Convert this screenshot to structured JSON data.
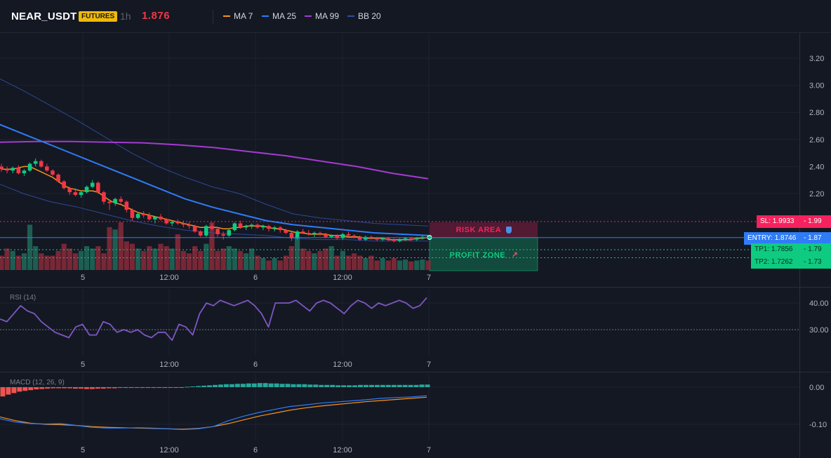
{
  "header": {
    "symbol": "NEAR_USDT",
    "badge": "FUTURES",
    "timeframe": "1h",
    "last_price": "1.876",
    "legend": [
      {
        "label": "MA 7",
        "color": "#f7931a"
      },
      {
        "label": "MA 25",
        "color": "#2f7cf6"
      },
      {
        "label": "MA 99",
        "color": "#a43bd1"
      },
      {
        "label": "BB 20",
        "color": "#2f4ea0"
      }
    ]
  },
  "colors": {
    "background": "#141823",
    "up": "#26a69a",
    "up_bright": "#0ecb81",
    "down": "#f23645",
    "entry": "#2f7cf6",
    "sl": "#f6225d",
    "tp": "#0ecb81"
  },
  "annotations": {
    "risk_label": "RISK AREA",
    "risk_icon": "shield-icon",
    "profit_label": "PROFIT ZONE",
    "profit_icon": "rocket-icon",
    "sl": {
      "label": "SL: 1.9933",
      "value": "1.99"
    },
    "entry": {
      "label": "ENTRY: 1.8746",
      "value": "1.87"
    },
    "tp1": {
      "label": "TP1: 1.7856",
      "value": "1.79"
    },
    "tp2": {
      "label": "TP2: 1.7262",
      "value": "1.73"
    }
  },
  "x_axis_labels": [
    "5",
    "12:00",
    "6",
    "12:00",
    "7"
  ],
  "chart_data": [
    {
      "type": "candlestick",
      "panel": "price",
      "y_ticks": [
        "3.20",
        "3.00",
        "2.80",
        "2.60",
        "2.40",
        "2.20"
      ],
      "ylim": [
        1.6,
        3.3
      ],
      "grid": true,
      "candles_ohlc": [
        [
          2.4,
          2.42,
          2.36,
          2.38
        ],
        [
          2.38,
          2.4,
          2.35,
          2.37
        ],
        [
          2.37,
          2.4,
          2.35,
          2.39
        ],
        [
          2.39,
          2.41,
          2.34,
          2.35
        ],
        [
          2.35,
          2.38,
          2.33,
          2.37
        ],
        [
          2.37,
          2.43,
          2.36,
          2.42
        ],
        [
          2.42,
          2.46,
          2.4,
          2.44
        ],
        [
          2.44,
          2.45,
          2.39,
          2.4
        ],
        [
          2.4,
          2.42,
          2.36,
          2.37
        ],
        [
          2.37,
          2.38,
          2.33,
          2.34
        ],
        [
          2.34,
          2.35,
          2.28,
          2.29
        ],
        [
          2.29,
          2.3,
          2.23,
          2.24
        ],
        [
          2.24,
          2.25,
          2.19,
          2.21
        ],
        [
          2.21,
          2.24,
          2.18,
          2.19
        ],
        [
          2.19,
          2.22,
          2.17,
          2.21
        ],
        [
          2.21,
          2.26,
          2.2,
          2.25
        ],
        [
          2.25,
          2.3,
          2.24,
          2.28
        ],
        [
          2.28,
          2.29,
          2.2,
          2.21
        ],
        [
          2.21,
          2.22,
          2.12,
          2.14
        ],
        [
          2.14,
          2.16,
          2.08,
          2.13
        ],
        [
          2.13,
          2.17,
          2.11,
          2.16
        ],
        [
          2.16,
          2.18,
          2.13,
          2.14
        ],
        [
          2.14,
          2.15,
          2.06,
          2.08
        ],
        [
          2.08,
          2.09,
          2.0,
          2.02
        ],
        [
          2.02,
          2.06,
          2.01,
          2.05
        ],
        [
          2.05,
          2.07,
          2.02,
          2.04
        ],
        [
          2.04,
          2.06,
          2.0,
          2.01
        ],
        [
          2.01,
          2.03,
          1.98,
          2.03
        ],
        [
          2.03,
          2.05,
          2.0,
          2.01
        ],
        [
          2.01,
          2.02,
          1.97,
          1.98
        ],
        [
          1.98,
          2.0,
          1.96,
          1.99
        ],
        [
          1.99,
          2.01,
          1.97,
          1.98
        ],
        [
          1.98,
          2.0,
          1.95,
          1.97
        ],
        [
          1.97,
          1.99,
          1.94,
          1.96
        ],
        [
          1.96,
          1.97,
          1.91,
          1.92
        ],
        [
          1.92,
          1.93,
          1.88,
          1.89
        ],
        [
          1.89,
          1.97,
          1.88,
          1.96
        ],
        [
          1.96,
          1.98,
          1.93,
          1.94
        ],
        [
          1.94,
          1.95,
          1.88,
          1.9
        ],
        [
          1.9,
          1.92,
          1.86,
          1.89
        ],
        [
          1.89,
          1.94,
          1.88,
          1.93
        ],
        [
          1.93,
          1.99,
          1.92,
          1.98
        ],
        [
          1.98,
          2.0,
          1.94,
          1.95
        ],
        [
          1.95,
          1.97,
          1.93,
          1.96
        ],
        [
          1.96,
          1.98,
          1.94,
          1.97
        ],
        [
          1.97,
          1.98,
          1.94,
          1.95
        ],
        [
          1.95,
          1.97,
          1.93,
          1.96
        ],
        [
          1.96,
          1.97,
          1.92,
          1.94
        ],
        [
          1.94,
          1.96,
          1.92,
          1.95
        ],
        [
          1.95,
          1.96,
          1.91,
          1.93
        ],
        [
          1.93,
          1.94,
          1.9,
          1.91
        ],
        [
          1.91,
          1.92,
          1.85,
          1.87
        ],
        [
          1.87,
          1.93,
          1.86,
          1.92
        ],
        [
          1.92,
          1.94,
          1.9,
          1.91
        ],
        [
          1.91,
          1.93,
          1.89,
          1.9
        ],
        [
          1.9,
          1.92,
          1.88,
          1.91
        ],
        [
          1.91,
          1.92,
          1.89,
          1.9
        ],
        [
          1.9,
          1.91,
          1.87,
          1.88
        ],
        [
          1.88,
          1.9,
          1.87,
          1.89
        ],
        [
          1.89,
          1.9,
          1.86,
          1.87
        ],
        [
          1.87,
          1.91,
          1.86,
          1.9
        ],
        [
          1.9,
          1.92,
          1.88,
          1.89
        ],
        [
          1.89,
          1.9,
          1.87,
          1.88
        ],
        [
          1.88,
          1.89,
          1.85,
          1.86
        ],
        [
          1.86,
          1.89,
          1.85,
          1.88
        ],
        [
          1.88,
          1.89,
          1.86,
          1.87
        ],
        [
          1.87,
          1.88,
          1.85,
          1.86
        ],
        [
          1.86,
          1.88,
          1.85,
          1.87
        ],
        [
          1.87,
          1.88,
          1.85,
          1.86
        ],
        [
          1.86,
          1.87,
          1.84,
          1.85
        ],
        [
          1.85,
          1.87,
          1.84,
          1.86
        ],
        [
          1.86,
          1.88,
          1.85,
          1.87
        ],
        [
          1.87,
          1.88,
          1.85,
          1.86
        ],
        [
          1.86,
          1.88,
          1.85,
          1.87
        ],
        [
          1.87,
          1.89,
          1.86,
          1.88
        ],
        [
          1.88,
          1.89,
          1.86,
          1.876
        ]
      ],
      "volume_levels": [
        0.3,
        0.45,
        0.4,
        0.3,
        0.35,
        0.95,
        0.5,
        0.35,
        0.3,
        0.3,
        0.4,
        0.55,
        0.45,
        0.35,
        0.4,
        0.5,
        0.45,
        0.5,
        0.35,
        0.9,
        0.85,
        1.0,
        0.6,
        0.55,
        0.45,
        0.4,
        0.5,
        0.45,
        0.55,
        0.5,
        0.45,
        0.75,
        0.4,
        0.35,
        0.5,
        0.4,
        0.55,
        1.0,
        0.4,
        0.45,
        0.5,
        0.45,
        0.4,
        0.35,
        0.45,
        0.3,
        0.25,
        0.2,
        0.25,
        0.2,
        0.3,
        0.5,
        0.7,
        0.45,
        0.4,
        0.35,
        0.4,
        0.45,
        0.5,
        0.3,
        0.4,
        0.3,
        0.35,
        0.3,
        0.25,
        0.3,
        0.2,
        0.25,
        0.2,
        0.25,
        0.2,
        0.22,
        0.18,
        0.2,
        0.22,
        0.2
      ],
      "series": [
        {
          "name": "MA 7",
          "values": [
            2.38,
            2.38,
            2.38,
            2.39,
            2.4,
            2.4,
            2.38,
            2.36,
            2.34,
            2.32,
            2.29,
            2.26,
            2.24,
            2.23,
            2.22,
            2.22,
            2.22,
            2.21,
            2.18,
            2.15,
            2.13,
            2.12,
            2.1,
            2.08,
            2.06,
            2.05,
            2.04,
            2.03,
            2.02,
            2.01,
            2.0,
            1.99,
            1.98,
            1.97,
            1.96,
            1.95,
            1.95,
            1.95,
            1.95,
            1.94,
            1.94,
            1.95,
            1.95,
            1.96,
            1.96,
            1.96,
            1.96,
            1.95,
            1.94,
            1.94,
            1.93,
            1.92,
            1.91,
            1.91,
            1.9,
            1.9,
            1.9,
            1.9,
            1.89,
            1.89,
            1.89,
            1.88,
            1.88,
            1.88,
            1.87,
            1.87,
            1.87,
            1.87,
            1.86,
            1.86,
            1.86,
            1.86,
            1.86,
            1.87,
            1.87,
            1.876
          ]
        },
        {
          "name": "MA 25",
          "x_range": [
            0,
            75
          ],
          "values": [
            2.72,
            2.64,
            2.56,
            2.48,
            2.4,
            2.32,
            2.24,
            2.16,
            2.1,
            2.05,
            2.0,
            1.97,
            1.95,
            1.93,
            1.91,
            1.9,
            1.89
          ]
        },
        {
          "name": "MA 99",
          "x_range": [
            0,
            75
          ],
          "values": [
            2.58,
            2.585,
            2.585,
            2.58,
            2.575,
            2.56,
            2.54,
            2.51,
            2.48,
            2.44,
            2.4,
            2.35,
            2.31
          ]
        },
        {
          "name": "BB 20 upper",
          "x_range": [
            0,
            75
          ],
          "values": [
            3.06,
            2.96,
            2.85,
            2.74,
            2.62,
            2.5,
            2.4,
            2.32,
            2.25,
            2.2,
            2.12,
            2.05,
            2.02,
            2.0,
            1.98,
            1.97,
            1.96
          ]
        },
        {
          "name": "BB 20 lower",
          "x_range": [
            0,
            75
          ],
          "values": [
            2.28,
            2.2,
            2.14,
            2.1,
            2.05,
            2.0,
            1.96,
            1.93,
            1.91,
            1.9,
            1.89,
            1.87,
            1.86,
            1.86,
            1.85,
            1.85,
            1.85
          ]
        }
      ],
      "levels": {
        "sl": 1.9933,
        "entry": 1.8746,
        "tp1": 1.7856,
        "tp2": 1.7262
      }
    },
    {
      "type": "line",
      "panel": "rsi",
      "title": "RSI (14)",
      "y_ticks": [
        "40.00",
        "30.00"
      ],
      "ylim": [
        20,
        45
      ],
      "level": 30,
      "values": [
        34,
        33,
        36,
        39,
        37,
        36,
        33,
        31,
        29,
        28,
        27,
        31,
        32,
        28,
        28,
        33,
        32,
        29,
        30,
        29,
        30,
        28,
        27,
        29,
        29,
        26,
        32,
        31,
        28,
        36,
        40,
        39,
        41,
        40,
        39,
        40,
        41,
        39,
        36,
        31,
        40,
        40,
        40,
        41,
        39,
        37,
        40,
        41,
        40,
        38,
        36,
        39,
        41,
        40,
        38,
        40,
        39,
        40,
        41,
        40,
        38,
        39,
        42
      ]
    },
    {
      "type": "bar",
      "panel": "macd",
      "title": "MACD (12, 26, 9)",
      "y_ticks": [
        "0.00",
        "-0.10"
      ],
      "ylim": [
        -0.14,
        0.03
      ],
      "histogram": [
        -0.025,
        -0.02,
        -0.016,
        -0.012,
        -0.01,
        -0.008,
        -0.006,
        -0.005,
        -0.004,
        -0.003,
        -0.003,
        -0.003,
        -0.003,
        -0.004,
        -0.004,
        -0.005,
        -0.005,
        -0.004,
        -0.004,
        -0.003,
        -0.003,
        -0.002,
        -0.002,
        -0.002,
        -0.002,
        -0.002,
        -0.002,
        -0.002,
        -0.002,
        -0.002,
        -0.001,
        -0.001,
        -0.001,
        0.001,
        0.002,
        0.003,
        0.004,
        0.005,
        0.006,
        0.007,
        0.008,
        0.008,
        0.009,
        0.009,
        0.01,
        0.01,
        0.011,
        0.011,
        0.01,
        0.01,
        0.009,
        0.009,
        0.008,
        0.008,
        0.008,
        0.007,
        0.007,
        0.006,
        0.006,
        0.006,
        0.005,
        0.005,
        0.005,
        0.005,
        0.006,
        0.006,
        0.006,
        0.006,
        0.006,
        0.006,
        0.006,
        0.006,
        0.006,
        0.006,
        0.006,
        0.007,
        0.007
      ],
      "series": [
        {
          "name": "MACD",
          "values": [
            -0.085,
            -0.094,
            -0.098,
            -0.099,
            -0.098,
            -0.103,
            -0.108,
            -0.11,
            -0.11,
            -0.109,
            -0.11,
            -0.112,
            -0.114,
            -0.112,
            -0.106,
            -0.09,
            -0.078,
            -0.068,
            -0.06,
            -0.052,
            -0.048,
            -0.043,
            -0.04,
            -0.037,
            -0.034,
            -0.03,
            -0.028,
            -0.026,
            -0.023
          ]
        },
        {
          "name": "Signal",
          "values": [
            -0.08,
            -0.09,
            -0.097,
            -0.1,
            -0.101,
            -0.103,
            -0.106,
            -0.108,
            -0.109,
            -0.11,
            -0.111,
            -0.112,
            -0.113,
            -0.111,
            -0.106,
            -0.098,
            -0.088,
            -0.078,
            -0.07,
            -0.062,
            -0.056,
            -0.051,
            -0.047,
            -0.043,
            -0.039,
            -0.036,
            -0.033,
            -0.03,
            -0.027
          ]
        }
      ]
    }
  ]
}
